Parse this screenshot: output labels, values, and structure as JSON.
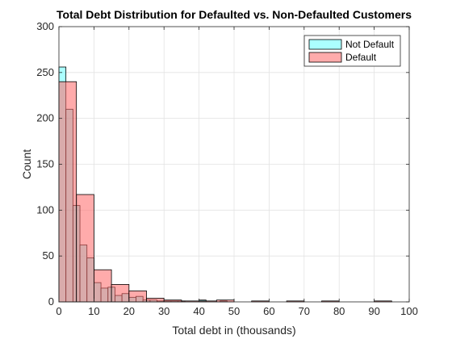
{
  "chart_data": {
    "type": "bar",
    "title": "Total Debt Distribution for Defaulted vs. Non-Defaulted Customers",
    "xlabel": "Total debt in (thousands)",
    "ylabel": "Count",
    "xlim": [
      0,
      100
    ],
    "ylim": [
      0,
      300
    ],
    "xticks": [
      0,
      10,
      20,
      30,
      40,
      50,
      60,
      70,
      80,
      90,
      100
    ],
    "yticks": [
      0,
      50,
      100,
      150,
      200,
      250,
      300
    ],
    "grid": true,
    "legend_position": "top-right",
    "series": [
      {
        "name": "Not Default",
        "color": "#66ffff",
        "bins": [
          {
            "x0": 0,
            "x1": 2,
            "count": 256
          },
          {
            "x0": 2,
            "x1": 4,
            "count": 210
          },
          {
            "x0": 4,
            "x1": 6,
            "count": 105
          },
          {
            "x0": 6,
            "x1": 8,
            "count": 62
          },
          {
            "x0": 8,
            "x1": 10,
            "count": 48
          },
          {
            "x0": 10,
            "x1": 12,
            "count": 21
          },
          {
            "x0": 12,
            "x1": 14,
            "count": 15
          },
          {
            "x0": 14,
            "x1": 16,
            "count": 16
          },
          {
            "x0": 16,
            "x1": 18,
            "count": 7
          },
          {
            "x0": 18,
            "x1": 20,
            "count": 9
          },
          {
            "x0": 20,
            "x1": 22,
            "count": 5
          },
          {
            "x0": 22,
            "x1": 24,
            "count": 6
          },
          {
            "x0": 24,
            "x1": 26,
            "count": 2
          },
          {
            "x0": 26,
            "x1": 28,
            "count": 2
          },
          {
            "x0": 28,
            "x1": 30,
            "count": 1
          },
          {
            "x0": 30,
            "x1": 32,
            "count": 1
          },
          {
            "x0": 32,
            "x1": 34,
            "count": 1
          },
          {
            "x0": 34,
            "x1": 36,
            "count": 1
          },
          {
            "x0": 40,
            "x1": 42,
            "count": 2
          },
          {
            "x0": 46,
            "x1": 48,
            "count": 1
          }
        ]
      },
      {
        "name": "Default",
        "color": "#ff6666",
        "bins": [
          {
            "x0": 0,
            "x1": 5,
            "count": 240
          },
          {
            "x0": 5,
            "x1": 10,
            "count": 117
          },
          {
            "x0": 10,
            "x1": 15,
            "count": 35
          },
          {
            "x0": 15,
            "x1": 20,
            "count": 19
          },
          {
            "x0": 20,
            "x1": 25,
            "count": 12
          },
          {
            "x0": 25,
            "x1": 30,
            "count": 4
          },
          {
            "x0": 30,
            "x1": 35,
            "count": 2
          },
          {
            "x0": 35,
            "x1": 40,
            "count": 1
          },
          {
            "x0": 40,
            "x1": 45,
            "count": 1
          },
          {
            "x0": 45,
            "x1": 50,
            "count": 2
          },
          {
            "x0": 55,
            "x1": 60,
            "count": 1
          },
          {
            "x0": 65,
            "x1": 70,
            "count": 1
          },
          {
            "x0": 75,
            "x1": 80,
            "count": 1
          },
          {
            "x0": 90,
            "x1": 95,
            "count": 1
          }
        ]
      }
    ]
  }
}
